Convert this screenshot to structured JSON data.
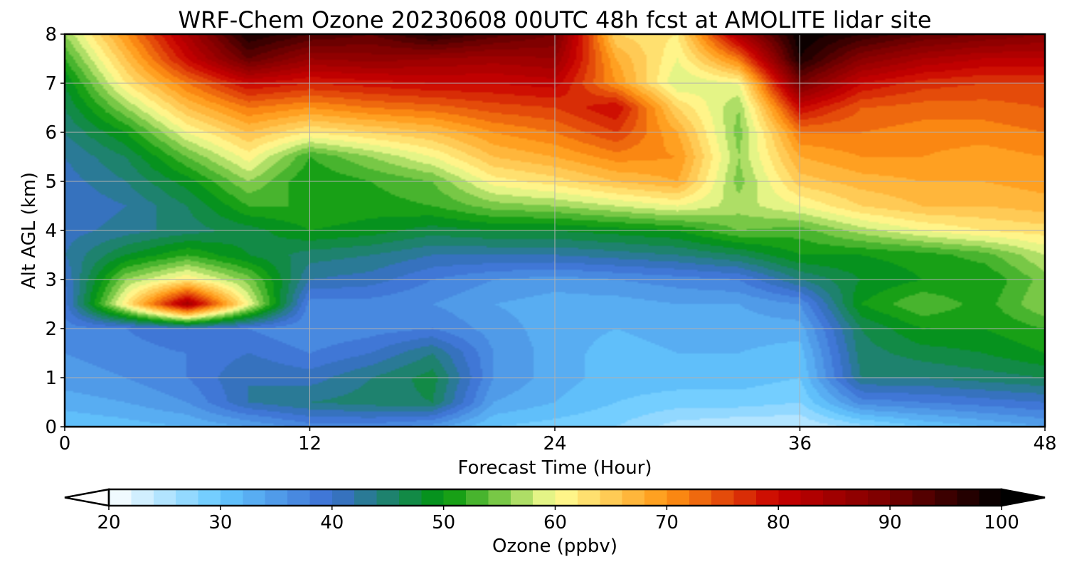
{
  "chart_data": {
    "type": "heatmap",
    "title": "WRF-Chem Ozone  20230608 00UTC 48h fcst at AMOLITE lidar site",
    "xlabel": "Forecast Time (Hour)",
    "ylabel": "Alt AGL (km)",
    "xlim": [
      0,
      48
    ],
    "ylim": [
      0,
      8
    ],
    "x_ticks": [
      0,
      12,
      24,
      36,
      48
    ],
    "y_ticks": [
      0,
      1,
      2,
      3,
      4,
      5,
      6,
      7,
      8
    ],
    "grid": true,
    "x": [
      0,
      3,
      6,
      9,
      12,
      15,
      18,
      21,
      24,
      27,
      30,
      33,
      36,
      39,
      42,
      45,
      48
    ],
    "y": [
      0,
      0.5,
      1,
      1.5,
      2,
      2.5,
      3,
      3.5,
      4,
      4.5,
      5,
      5.5,
      6,
      6.5,
      7,
      7.5,
      8
    ],
    "z": [
      [
        30,
        31,
        32,
        34,
        37,
        37,
        35,
        30,
        29,
        28,
        25,
        24,
        24,
        27,
        30,
        32,
        34
      ],
      [
        33,
        34,
        36,
        42,
        44,
        45,
        46,
        34,
        32,
        30,
        29,
        29,
        28,
        37,
        38,
        39,
        40
      ],
      [
        35,
        36,
        38,
        42,
        41,
        44,
        47,
        36,
        33,
        31,
        31,
        31,
        30,
        44,
        44,
        45,
        46
      ],
      [
        36,
        37,
        38,
        40,
        38,
        40,
        44,
        36,
        33,
        31,
        32,
        32,
        31,
        45,
        47,
        48,
        50
      ],
      [
        37,
        38,
        40,
        38,
        36,
        37,
        38,
        35,
        33,
        32,
        33,
        33,
        33,
        46,
        50,
        50,
        52
      ],
      [
        39,
        62,
        85,
        60,
        37,
        37,
        36,
        34,
        33,
        33,
        34,
        34,
        36,
        50,
        54,
        51,
        56
      ],
      [
        40,
        56,
        62,
        55,
        42,
        41,
        38,
        36,
        35,
        36,
        37,
        38,
        44,
        48,
        50,
        50,
        55
      ],
      [
        42,
        48,
        52,
        48,
        45,
        44,
        42,
        42,
        42,
        43,
        44,
        46,
        50,
        50,
        51,
        53,
        58
      ],
      [
        41,
        43,
        45,
        47,
        50,
        49,
        47,
        48,
        48,
        49,
        50,
        54,
        53,
        57,
        60,
        62,
        63
      ],
      [
        40,
        42,
        46,
        52,
        52,
        51,
        52,
        55,
        56,
        58,
        60,
        57,
        60,
        64,
        66,
        66,
        67
      ],
      [
        41,
        44,
        49,
        56,
        50,
        52,
        54,
        61,
        63,
        66,
        68,
        55,
        65,
        67,
        68,
        68,
        69
      ],
      [
        42,
        46,
        54,
        61,
        52,
        56,
        60,
        66,
        68,
        71,
        70,
        56,
        68,
        70,
        70,
        69,
        70
      ],
      [
        44,
        50,
        60,
        66,
        62,
        64,
        66,
        70,
        72,
        76,
        68,
        55,
        72,
        72,
        71,
        71,
        72
      ],
      [
        46,
        56,
        66,
        72,
        70,
        72,
        73,
        75,
        76,
        80,
        64,
        56,
        80,
        74,
        73,
        73,
        74
      ],
      [
        48,
        62,
        72,
        80,
        78,
        79,
        80,
        80,
        81,
        70,
        58,
        60,
        90,
        80,
        77,
        76,
        76
      ],
      [
        52,
        66,
        80,
        92,
        86,
        87,
        86,
        85,
        86,
        68,
        60,
        72,
        98,
        88,
        84,
        82,
        82
      ],
      [
        56,
        70,
        84,
        98,
        94,
        92,
        97,
        93,
        90,
        64,
        62,
        84,
        100,
        96,
        92,
        90,
        88
      ]
    ],
    "colorbar": {
      "label": "Ozone  (ppbv)",
      "min": 20,
      "max": 100,
      "ticks": [
        20,
        30,
        40,
        50,
        60,
        70,
        80,
        90,
        100
      ],
      "extend": "both"
    },
    "colormap_stops": [
      {
        "v": 20,
        "color": "#ffffff"
      },
      {
        "v": 30,
        "color": "#64c8ff"
      },
      {
        "v": 40,
        "color": "#3c6ed2"
      },
      {
        "v": 50,
        "color": "#00960a"
      },
      {
        "v": 55,
        "color": "#78c846"
      },
      {
        "v": 60,
        "color": "#ffff96"
      },
      {
        "v": 70,
        "color": "#ff9614"
      },
      {
        "v": 80,
        "color": "#c80000"
      },
      {
        "v": 90,
        "color": "#780000"
      },
      {
        "v": 100,
        "color": "#000000"
      }
    ]
  }
}
